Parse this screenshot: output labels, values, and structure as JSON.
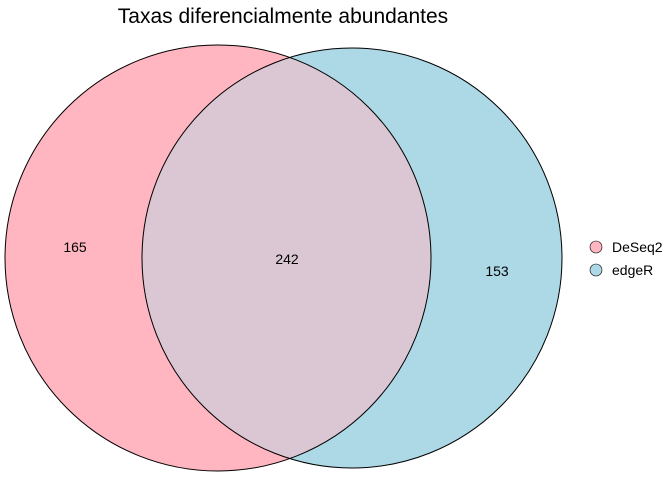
{
  "title": "Taxas diferencialmente abundantes",
  "sets": [
    {
      "name": "DeSeq2",
      "only_count": "165",
      "color": "#ffb6c1"
    },
    {
      "name": "edgeR",
      "only_count": "153",
      "color": "#add8e6"
    }
  ],
  "intersection": {
    "count": "242",
    "color": "#dbc7d3"
  },
  "legend": {
    "position": "right",
    "items": [
      {
        "label": "DeSeq2",
        "color": "#ffb6c1"
      },
      {
        "label": "edgeR",
        "color": "#add8e6"
      }
    ]
  }
}
